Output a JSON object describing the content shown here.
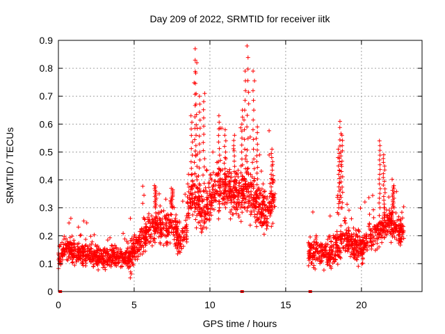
{
  "chart_data": {
    "type": "scatter",
    "title": "Day 209 of 2022, SRMTID for receiver iitk",
    "xlabel": "GPS time / hours",
    "ylabel": "SRMTID / TECUs",
    "xlim": [
      0,
      24
    ],
    "ylim": [
      0,
      0.9
    ],
    "x_ticks": [
      0,
      5,
      10,
      15,
      20
    ],
    "y_ticks": [
      0,
      0.1,
      0.2,
      0.3,
      0.4,
      0.5,
      0.6,
      0.7,
      0.8,
      0.9
    ],
    "x_tick_labels": [
      "0",
      "5",
      "10",
      "15",
      "20"
    ],
    "y_tick_labels": [
      "0",
      "0.1",
      "0.2",
      "0.3",
      "0.4",
      "0.5",
      "0.6",
      "0.7",
      "0.8",
      "0.9"
    ],
    "grid": true,
    "marker": "+",
    "color": "#ff0000",
    "flag_x_hours": [
      0.1,
      12.1,
      16.6
    ],
    "series": [
      {
        "name": "SRMTID",
        "segments": [
          {
            "x_start": 0.0,
            "x_end": 4.7,
            "envelope": [
              [
                0.0,
                0.12
              ],
              [
                0.5,
                0.16
              ],
              [
                1.0,
                0.14
              ],
              [
                1.5,
                0.13
              ],
              [
                2.0,
                0.14
              ],
              [
                2.5,
                0.12
              ],
              [
                3.0,
                0.12
              ],
              [
                3.5,
                0.13
              ],
              [
                4.0,
                0.12
              ],
              [
                4.7,
                0.12
              ]
            ],
            "spread": 0.04
          },
          {
            "x_start": 4.7,
            "x_end": 8.5,
            "envelope": [
              [
                4.7,
                0.1
              ],
              [
                5.0,
                0.16
              ],
              [
                5.5,
                0.18
              ],
              [
                6.0,
                0.22
              ],
              [
                6.5,
                0.24
              ],
              [
                7.0,
                0.22
              ],
              [
                7.5,
                0.24
              ],
              [
                8.0,
                0.18
              ],
              [
                8.5,
                0.22
              ]
            ],
            "spread": 0.06
          },
          {
            "x_start": 8.5,
            "x_end": 14.3,
            "envelope": [
              [
                8.5,
                0.33
              ],
              [
                9.0,
                0.35
              ],
              [
                9.5,
                0.28
              ],
              [
                10.0,
                0.33
              ],
              [
                10.5,
                0.38
              ],
              [
                11.0,
                0.38
              ],
              [
                11.5,
                0.35
              ],
              [
                12.0,
                0.38
              ],
              [
                12.5,
                0.36
              ],
              [
                13.0,
                0.32
              ],
              [
                13.5,
                0.28
              ],
              [
                14.0,
                0.3
              ],
              [
                14.3,
                0.33
              ]
            ],
            "spread": 0.09
          },
          {
            "x_start": 16.5,
            "x_end": 22.8,
            "envelope": [
              [
                16.5,
                0.15
              ],
              [
                17.0,
                0.13
              ],
              [
                17.5,
                0.14
              ],
              [
                18.0,
                0.14
              ],
              [
                18.5,
                0.17
              ],
              [
                19.0,
                0.19
              ],
              [
                19.5,
                0.16
              ],
              [
                20.0,
                0.15
              ],
              [
                20.5,
                0.2
              ],
              [
                21.0,
                0.21
              ],
              [
                21.5,
                0.24
              ],
              [
                22.0,
                0.25
              ],
              [
                22.5,
                0.22
              ],
              [
                22.8,
                0.22
              ]
            ],
            "spread": 0.06
          }
        ],
        "spikes": [
          {
            "x": 9.0,
            "peak": 0.87
          },
          {
            "x": 9.1,
            "peak": 0.82
          },
          {
            "x": 8.8,
            "peak": 0.63
          },
          {
            "x": 9.3,
            "peak": 0.7
          },
          {
            "x": 9.6,
            "peak": 0.71
          },
          {
            "x": 10.6,
            "peak": 0.63
          },
          {
            "x": 11.0,
            "peak": 0.58
          },
          {
            "x": 11.6,
            "peak": 0.56
          },
          {
            "x": 12.1,
            "peak": 0.65
          },
          {
            "x": 12.3,
            "peak": 0.79
          },
          {
            "x": 12.5,
            "peak": 0.88
          },
          {
            "x": 12.9,
            "peak": 0.79
          },
          {
            "x": 13.1,
            "peak": 0.59
          },
          {
            "x": 14.1,
            "peak": 0.51
          },
          {
            "x": 18.6,
            "peak": 0.61
          },
          {
            "x": 18.7,
            "peak": 0.56
          },
          {
            "x": 18.5,
            "peak": 0.51
          },
          {
            "x": 21.2,
            "peak": 0.54
          },
          {
            "x": 21.5,
            "peak": 0.49
          },
          {
            "x": 6.4,
            "peak": 0.38
          },
          {
            "x": 7.5,
            "peak": 0.37
          },
          {
            "x": 22.1,
            "peak": 0.38
          }
        ]
      }
    ]
  }
}
